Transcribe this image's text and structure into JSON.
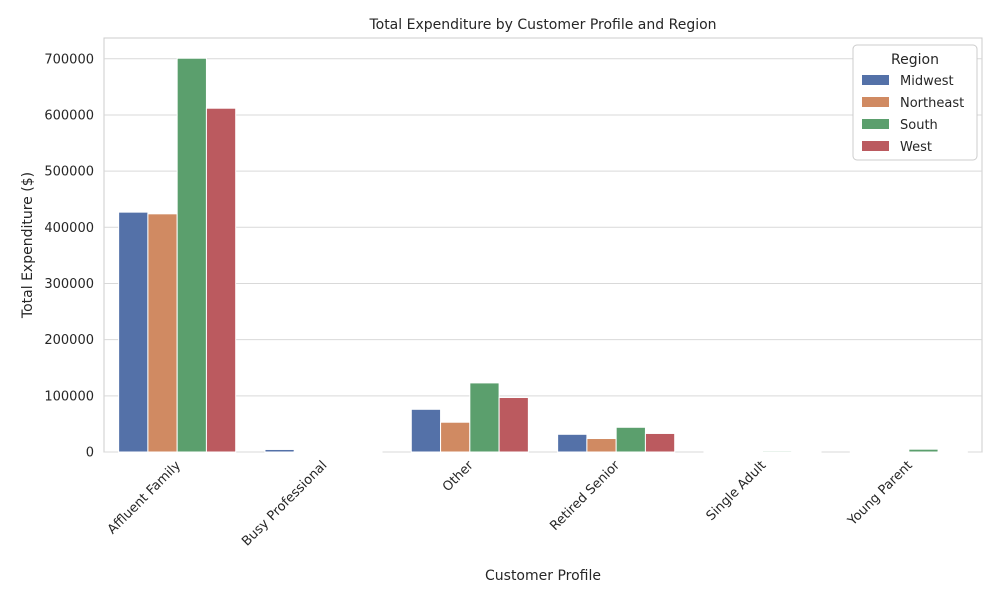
{
  "chart_data": {
    "type": "bar",
    "title": "Total Expenditure by Customer Profile and Region",
    "xlabel": "Customer Profile",
    "ylabel": "Total Expenditure ($)",
    "categories": [
      "Affluent Family",
      "Busy Professional",
      "Other",
      "Retired Senior",
      "Single Adult",
      "Young Parent"
    ],
    "series": [
      {
        "name": "Midwest",
        "color": "#5471a8",
        "values": [
          427000,
          4500,
          76000,
          31500,
          1500,
          1500
        ]
      },
      {
        "name": "Northeast",
        "color": "#d08a62",
        "values": [
          424000,
          1200,
          53000,
          24000,
          1200,
          1200
        ]
      },
      {
        "name": "South",
        "color": "#5b9f6d",
        "values": [
          701000,
          1500,
          123000,
          44000,
          2000,
          5000
        ]
      },
      {
        "name": "West",
        "color": "#bb5a5f",
        "values": [
          612000,
          800,
          97000,
          33000,
          1000,
          1500
        ]
      }
    ],
    "yticks": [
      0,
      100000,
      200000,
      300000,
      400000,
      500000,
      600000,
      700000
    ],
    "ylim": [
      0,
      737000
    ],
    "grid": true,
    "legend": {
      "title": "Region",
      "position": "top-right"
    }
  }
}
